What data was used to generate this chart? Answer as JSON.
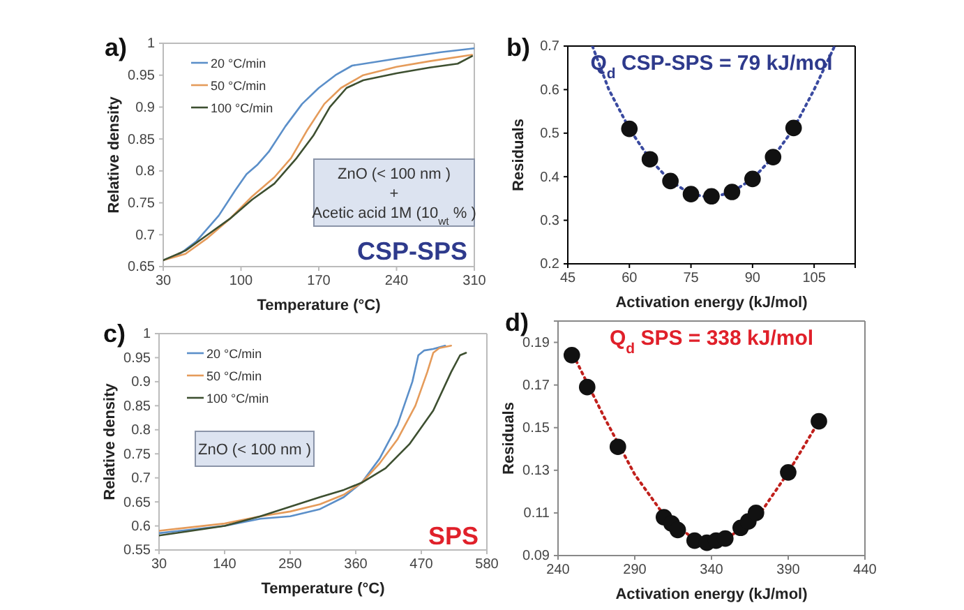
{
  "chart_data": [
    {
      "type": "line",
      "xlabel": "Temperature (°C)",
      "ylabel": "Relative density",
      "xlim": [
        30,
        310
      ],
      "xticks": [
        30,
        100,
        170,
        240,
        310
      ],
      "ylim": [
        0.65,
        1
      ],
      "yticks": [
        0.65,
        0.7,
        0.75,
        0.8,
        0.85,
        0.9,
        0.95,
        1
      ],
      "legend": "top left",
      "annotations": [
        "a)",
        "ZnO (< 100 nm )\n+\nAcetic acid 1M (10$_{wt}$ % )",
        "CSP-SPS"
      ],
      "series": [
        {
          "name": "20 °C/min",
          "color": "#5b8fc9",
          "x": [
            30,
            45,
            60,
            80,
            95,
            105,
            115,
            125,
            140,
            155,
            170,
            185,
            200,
            240,
            280,
            310
          ],
          "values": [
            0.66,
            0.67,
            0.69,
            0.73,
            0.77,
            0.795,
            0.81,
            0.83,
            0.87,
            0.905,
            0.93,
            0.95,
            0.965,
            0.976,
            0.986,
            0.992
          ]
        },
        {
          "name": "50 °C/min",
          "color": "#e59b5a",
          "x": [
            30,
            50,
            70,
            90,
            110,
            130,
            145,
            160,
            175,
            190,
            210,
            240,
            270,
            308
          ],
          "values": [
            0.66,
            0.67,
            0.695,
            0.725,
            0.76,
            0.79,
            0.82,
            0.865,
            0.905,
            0.93,
            0.95,
            0.963,
            0.972,
            0.982
          ]
        },
        {
          "name": "100 °C/min",
          "color": "#3d4f30",
          "x": [
            30,
            50,
            70,
            90,
            110,
            130,
            150,
            165,
            180,
            195,
            210,
            240,
            270,
            295,
            308
          ],
          "values": [
            0.66,
            0.675,
            0.7,
            0.725,
            0.755,
            0.78,
            0.82,
            0.855,
            0.9,
            0.93,
            0.942,
            0.953,
            0.962,
            0.968,
            0.98
          ]
        }
      ]
    },
    {
      "type": "scatter",
      "title": "Q$_{d}$ CSP-SPS = 79 kJ/mol",
      "xlabel": "Activation energy (kJ/mol)",
      "ylabel": "Residuals",
      "xlim": [
        45,
        115
      ],
      "xticks": [
        45,
        60,
        75,
        90,
        105
      ],
      "ylim": [
        0.2,
        0.7
      ],
      "yticks": [
        0.2,
        0.3,
        0.4,
        0.5,
        0.6,
        0.7
      ],
      "annotations": [
        "b)"
      ],
      "series": [
        {
          "type": "line",
          "color": "#3a4aa0",
          "line_style": "dotted",
          "x": [
            51,
            55,
            60,
            65,
            70,
            75,
            80,
            85,
            90,
            95,
            100,
            105,
            110
          ],
          "values": [
            0.7,
            0.6,
            0.51,
            0.44,
            0.39,
            0.36,
            0.352,
            0.365,
            0.395,
            0.445,
            0.51,
            0.6,
            0.7
          ]
        },
        {
          "marker": "circle",
          "color": "#111111",
          "x": [
            60,
            65,
            70,
            75,
            80,
            85,
            90,
            95,
            100
          ],
          "values": [
            0.51,
            0.44,
            0.39,
            0.36,
            0.355,
            0.365,
            0.395,
            0.445,
            0.512
          ]
        }
      ]
    },
    {
      "type": "line",
      "xlabel": "Temperature (°C)",
      "ylabel": "Relative density",
      "xlim": [
        30,
        580
      ],
      "xticks": [
        30,
        140,
        250,
        360,
        470,
        580
      ],
      "ylim": [
        0.55,
        1
      ],
      "yticks": [
        0.55,
        0.6,
        0.65,
        0.7,
        0.75,
        0.8,
        0.85,
        0.9,
        0.95,
        1
      ],
      "legend": "top left",
      "annotations": [
        "c)",
        "ZnO (< 100 nm )",
        "SPS"
      ],
      "series": [
        {
          "name": "20 °C/min",
          "color": "#5b8fc9",
          "x": [
            30,
            140,
            200,
            250,
            300,
            340,
            370,
            400,
            430,
            455,
            465,
            475,
            490,
            510
          ],
          "values": [
            0.585,
            0.6,
            0.615,
            0.62,
            0.635,
            0.66,
            0.69,
            0.74,
            0.81,
            0.9,
            0.955,
            0.965,
            0.968,
            0.975
          ]
        },
        {
          "name": "50 °C/min",
          "color": "#e59b5a",
          "x": [
            30,
            140,
            200,
            250,
            300,
            340,
            370,
            400,
            430,
            460,
            480,
            490,
            500,
            520
          ],
          "values": [
            0.59,
            0.605,
            0.62,
            0.63,
            0.645,
            0.665,
            0.69,
            0.73,
            0.78,
            0.85,
            0.92,
            0.96,
            0.97,
            0.975
          ]
        },
        {
          "name": "100 °C/min",
          "color": "#3d4f30",
          "x": [
            30,
            140,
            200,
            250,
            300,
            340,
            370,
            410,
            450,
            490,
            520,
            535,
            545
          ],
          "values": [
            0.58,
            0.6,
            0.62,
            0.64,
            0.66,
            0.675,
            0.69,
            0.72,
            0.77,
            0.84,
            0.92,
            0.955,
            0.96
          ]
        }
      ]
    },
    {
      "type": "scatter",
      "title": "Q$_{d}$ SPS = 338 kJ/mol",
      "xlabel": "Activation energy (kJ/mol)",
      "ylabel": "Residuals",
      "xlim": [
        240,
        440
      ],
      "xticks": [
        240,
        290,
        340,
        390,
        440
      ],
      "ylim": [
        0.09,
        0.2
      ],
      "yticks": [
        0.09,
        0.11,
        0.13,
        0.15,
        0.17,
        0.19
      ],
      "annotations": [
        "d)"
      ],
      "series": [
        {
          "type": "line",
          "color": "#c0201c",
          "line_style": "dotted",
          "x": [
            250,
            270,
            290,
            310,
            330,
            340,
            350,
            370,
            390,
            410
          ],
          "values": [
            0.184,
            0.155,
            0.128,
            0.108,
            0.097,
            0.096,
            0.098,
            0.108,
            0.129,
            0.153
          ]
        },
        {
          "marker": "circle",
          "color": "#111111",
          "x": [
            249,
            259,
            279,
            309,
            314,
            318,
            329,
            337,
            343,
            349,
            359,
            364,
            369,
            390,
            410
          ],
          "values": [
            0.184,
            0.169,
            0.141,
            0.108,
            0.105,
            0.102,
            0.097,
            0.096,
            0.097,
            0.098,
            0.103,
            0.106,
            0.11,
            0.129,
            0.153
          ]
        }
      ]
    }
  ]
}
